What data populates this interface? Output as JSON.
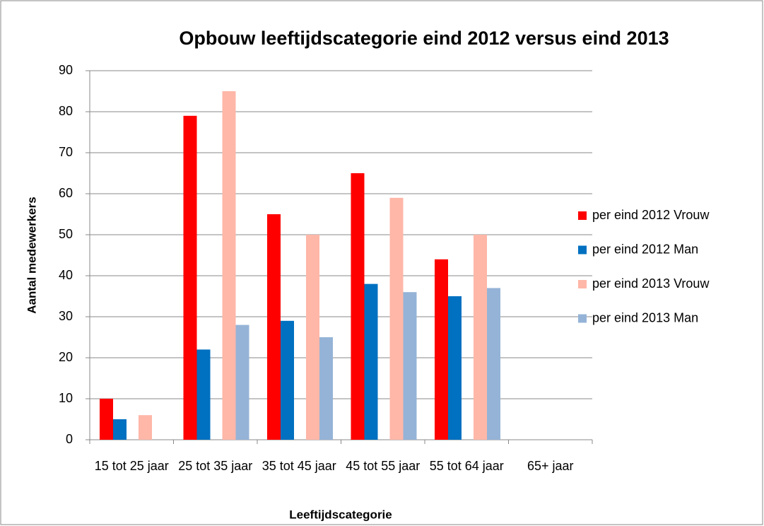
{
  "chart_data": {
    "type": "bar",
    "title": "Opbouw leeftijdscategorie eind 2012 versus eind 2013",
    "xlabel": "Leeftijdscategorie",
    "ylabel": "Aantal medewerkers",
    "categories": [
      "15 tot 25 jaar",
      "25 tot 35 jaar",
      "35 tot 45 jaar",
      "45 tot 55 jaar",
      "55 tot 64 jaar",
      "65+ jaar"
    ],
    "series": [
      {
        "name": "per eind 2012 Vrouw",
        "color": "#ff0000",
        "values": [
          10,
          79,
          55,
          65,
          44,
          0
        ]
      },
      {
        "name": "per eind 2012 Man",
        "color": "#0070c0",
        "values": [
          5,
          22,
          29,
          38,
          35,
          0
        ]
      },
      {
        "name": "per eind 2013 Vrouw",
        "color": "#ffb7a8",
        "values": [
          6,
          85,
          50,
          59,
          50,
          0
        ]
      },
      {
        "name": "per eind 2013 Man",
        "color": "#95b3d7",
        "values": [
          0,
          28,
          25,
          36,
          37,
          0
        ]
      }
    ],
    "ylim": [
      0,
      90
    ],
    "yticks": [
      0,
      10,
      20,
      30,
      40,
      50,
      60,
      70,
      80,
      90
    ],
    "grid": true,
    "legend": "right"
  }
}
